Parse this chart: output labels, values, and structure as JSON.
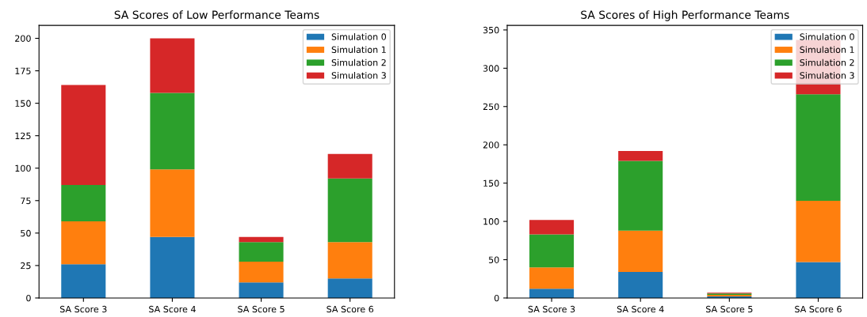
{
  "chart_data": [
    {
      "type": "bar",
      "title": "SA Scores of Low Performance Teams",
      "stacked": true,
      "categories": [
        "SA Score 3",
        "SA Score 4",
        "SA Score 5",
        "SA Score 6"
      ],
      "series": [
        {
          "name": "Simulation 0",
          "color": "#1f77b4",
          "values": [
            26,
            47,
            12,
            15
          ]
        },
        {
          "name": "Simulation 1",
          "color": "#ff7f0e",
          "values": [
            33,
            52,
            16,
            28
          ]
        },
        {
          "name": "Simulation 2",
          "color": "#2ca02c",
          "values": [
            28,
            59,
            15,
            49
          ]
        },
        {
          "name": "Simulation 3",
          "color": "#d62728",
          "values": [
            77,
            42,
            4,
            19
          ]
        }
      ],
      "ylim": [
        0,
        210
      ],
      "yticks": [
        0,
        25,
        50,
        75,
        100,
        125,
        150,
        175,
        200
      ],
      "legend": "top right",
      "grid": false
    },
    {
      "type": "bar",
      "title": "SA Scores of High Performance Teams",
      "stacked": true,
      "categories": [
        "SA Score 3",
        "SA Score 4",
        "SA Score 5",
        "SA Score 6"
      ],
      "series": [
        {
          "name": "Simulation 0",
          "color": "#1f77b4",
          "values": [
            12,
            34,
            2,
            47
          ]
        },
        {
          "name": "Simulation 1",
          "color": "#ff7f0e",
          "values": [
            28,
            54,
            2,
            80
          ]
        },
        {
          "name": "Simulation 2",
          "color": "#2ca02c",
          "values": [
            43,
            91,
            2,
            139
          ]
        },
        {
          "name": "Simulation 3",
          "color": "#d62728",
          "values": [
            19,
            13,
            1,
            71
          ]
        }
      ],
      "ylim": [
        0,
        356
      ],
      "yticks": [
        0,
        50,
        100,
        150,
        200,
        250,
        300,
        350
      ],
      "legend": "top right",
      "grid": false
    }
  ]
}
